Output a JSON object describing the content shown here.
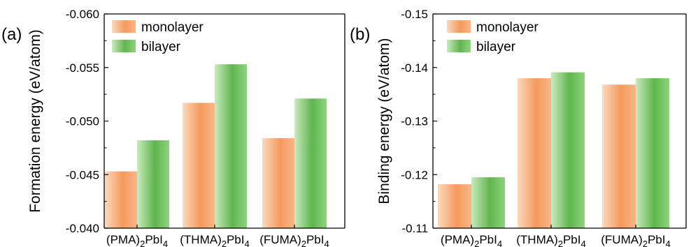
{
  "chart_data": [
    {
      "type": "bar",
      "panel_label": "(a)",
      "categories": [
        {
          "name": "(PMA)",
          "sub1": "2",
          "mid": "PbI",
          "sub2": "4"
        },
        {
          "name": "(THMA)",
          "sub1": "2",
          "mid": "PbI",
          "sub2": "4"
        },
        {
          "name": "(FUMA)",
          "sub1": "2",
          "mid": "PbI",
          "sub2": "4"
        }
      ],
      "series": [
        {
          "name": "monolayer",
          "values": [
            -0.0453,
            -0.0517,
            -0.0484
          ],
          "color": "#f5a36b"
        },
        {
          "name": "bilayer",
          "values": [
            -0.0482,
            -0.0553,
            -0.0521
          ],
          "color": "#74c365"
        }
      ],
      "ylabel": "Formation energy (eV/atom)",
      "ylim": [
        -0.04,
        -0.06
      ],
      "yticks": [
        "-0.060",
        "-0.055",
        "-0.050",
        "-0.045",
        "-0.040"
      ],
      "legend_position": "top-left",
      "grid": false
    },
    {
      "type": "bar",
      "panel_label": "(b)",
      "categories": [
        {
          "name": "(PMA)",
          "sub1": "2",
          "mid": "PbI",
          "sub2": "4"
        },
        {
          "name": "(THMA)",
          "sub1": "2",
          "mid": "PbI",
          "sub2": "4"
        },
        {
          "name": "(FUMA)",
          "sub1": "2",
          "mid": "PbI",
          "sub2": "4"
        }
      ],
      "series": [
        {
          "name": "monolayer",
          "values": [
            -0.1182,
            -0.138,
            -0.1368
          ],
          "color": "#f5a36b"
        },
        {
          "name": "bilayer",
          "values": [
            -0.1195,
            -0.1391,
            -0.138
          ],
          "color": "#74c365"
        }
      ],
      "ylabel": "Binding energy (eV/atom)",
      "ylim": [
        -0.11,
        -0.15
      ],
      "yticks": [
        "-0.15",
        "-0.14",
        "-0.13",
        "-0.12",
        "-0.11"
      ],
      "legend_position": "top-left",
      "grid": false
    }
  ]
}
